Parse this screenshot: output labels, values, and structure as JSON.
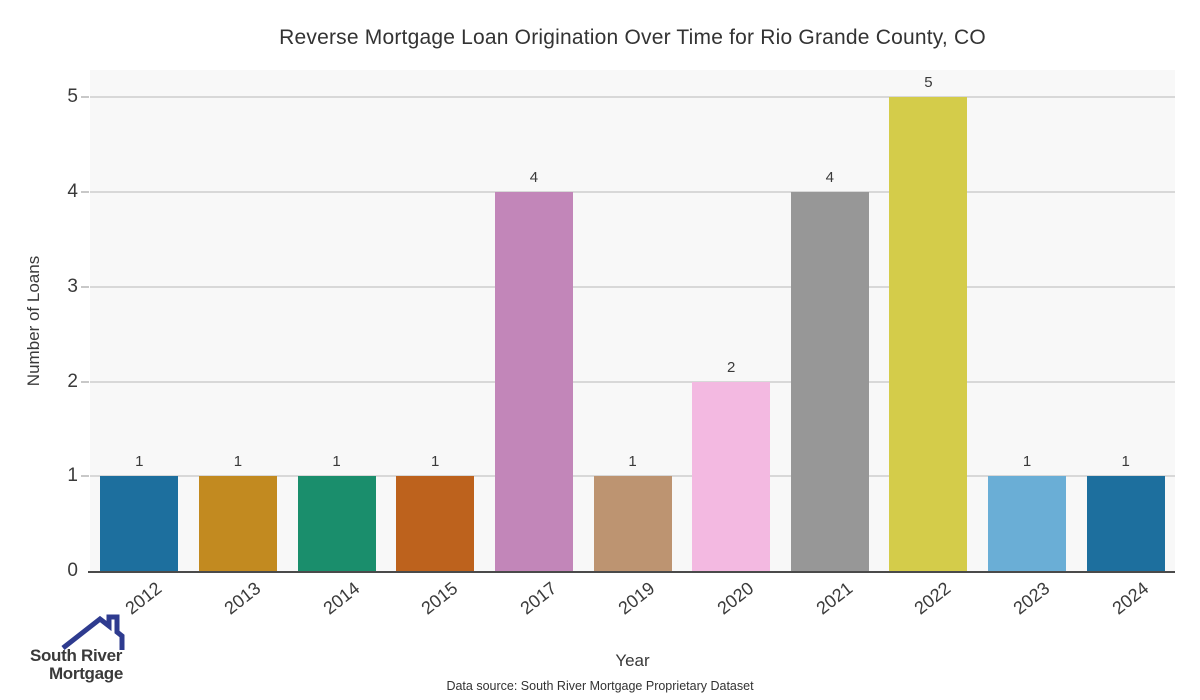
{
  "title": "Reverse Mortgage Loan Origination Over Time for Rio Grande County, CO",
  "chart_data": {
    "type": "bar",
    "categories": [
      "2012",
      "2013",
      "2014",
      "2015",
      "2017",
      "2019",
      "2020",
      "2021",
      "2022",
      "2023",
      "2024"
    ],
    "values": [
      1,
      1,
      1,
      1,
      4,
      1,
      2,
      4,
      5,
      1,
      1
    ],
    "bar_colors": [
      "#1d6f9e",
      "#c28a20",
      "#1a8e6c",
      "#bd621d",
      "#c286b9",
      "#bd9471",
      "#f3b9e1",
      "#979797",
      "#d4cc4a",
      "#6aaed6",
      "#1d6f9e"
    ],
    "title": "Reverse Mortgage Loan Origination Over Time for Rio Grande County, CO",
    "xlabel": "Year",
    "ylabel": "Number of Loans",
    "yticks": [
      0,
      1,
      2,
      3,
      4,
      5
    ],
    "ylim": [
      0,
      5.29
    ],
    "grid": "horizontal",
    "legend": "none",
    "value_labels": [
      1,
      1,
      1,
      1,
      4,
      1,
      2,
      4,
      5,
      1,
      1
    ]
  },
  "footer": {
    "data_source": "Data source: South River Mortgage Proprietary Dataset"
  },
  "logo": {
    "line1": "South River",
    "line2": "Mortgage",
    "color": "#2e3b8f"
  },
  "colors": {
    "plot_background": "#f8f8f8",
    "figure_background": "#ffffff",
    "gridline": "#d8d8d8",
    "axis_line": "#4a4a4a",
    "text": "#3a3a3a"
  }
}
